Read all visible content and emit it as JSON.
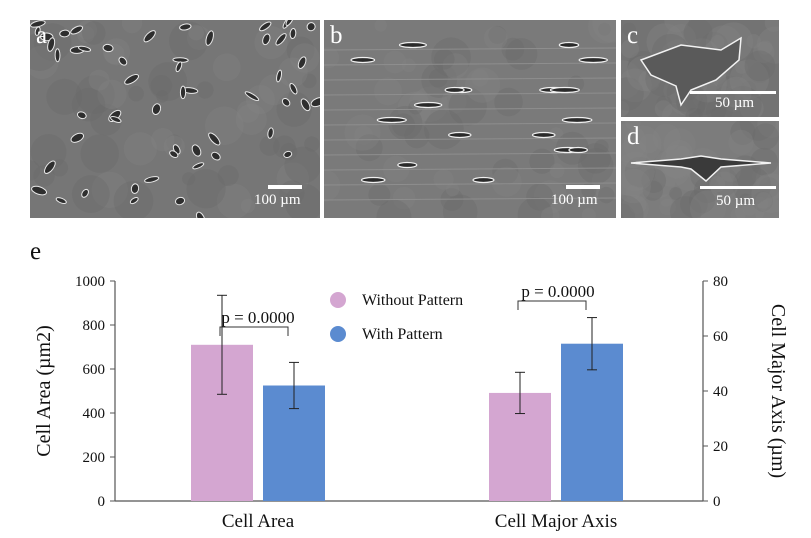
{
  "panels": [
    {
      "label": "a",
      "scale_text": "100 µm",
      "tone": "#767676"
    },
    {
      "label": "b",
      "scale_text": "100 µm",
      "tone": "#7a7a7a"
    },
    {
      "label": "c",
      "scale_text": "50 µm",
      "tone": "#737373"
    },
    {
      "label": "d",
      "scale_text": "50 µm",
      "tone": "#7c7c7c"
    }
  ],
  "chart_label": "e",
  "chart_data": {
    "type": "bar",
    "categories": [
      "Cell Area",
      "Cell Major Axis"
    ],
    "series": [
      {
        "name": "Without Pattern",
        "color": "#d4a6d1",
        "values": [
          710,
          39.3
        ],
        "errors": [
          225,
          7.5
        ]
      },
      {
        "name": "With Pattern",
        "color": "#5b8bd0",
        "values": [
          525,
          57.2
        ],
        "errors": [
          105,
          9.5
        ]
      }
    ],
    "axis": [
      "left",
      "right"
    ],
    "ylabel_left": "Cell Area (µm2)",
    "ylabel_right": "Cell Major Axis (µm)",
    "ylim_left": [
      0,
      1000
    ],
    "yticks_left": [
      "0",
      "200",
      "400",
      "600",
      "800",
      "1000"
    ],
    "ylim_right": [
      0,
      80
    ],
    "yticks_right": [
      "0",
      "20",
      "40",
      "60",
      "80"
    ],
    "annotations": [
      "p = 0.0000",
      "p = 0.0000"
    ],
    "legend_position": "top-center",
    "grid": false
  }
}
